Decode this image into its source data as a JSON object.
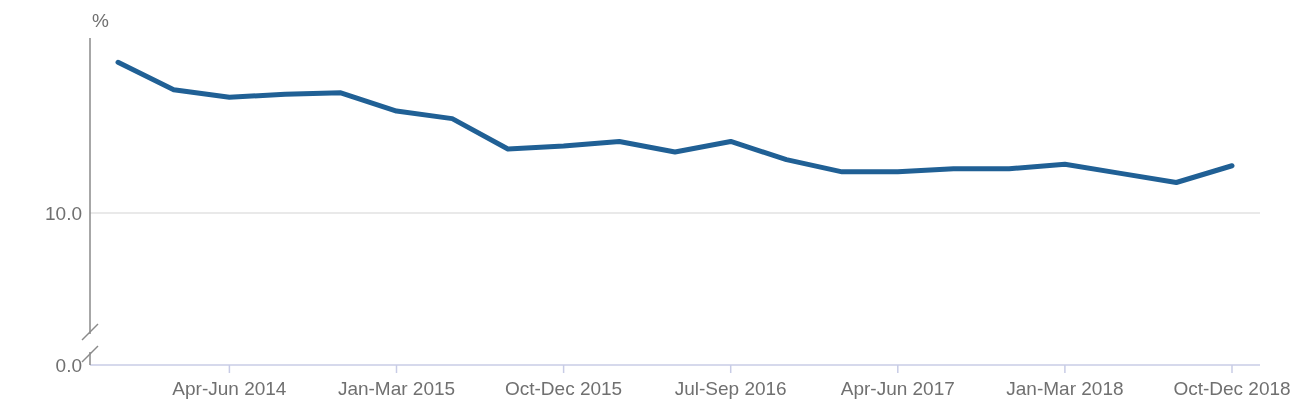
{
  "chart_data": {
    "type": "line",
    "ylabel": "%",
    "categories": [
      null,
      null,
      "Apr-Jun 2014",
      null,
      null,
      "Jan-Mar 2015",
      null,
      null,
      "Oct-Dec 2015",
      null,
      null,
      "Jul-Sep 2016",
      null,
      null,
      "Apr-Jun 2017",
      null,
      null,
      "Jan-Mar 2018",
      null,
      null,
      "Oct-Dec 2018"
    ],
    "series": [
      {
        "color": "#206095",
        "values": [
          19.9,
          18.1,
          17.6,
          17.8,
          17.9,
          16.7,
          16.2,
          14.2,
          14.4,
          14.7,
          14.0,
          14.7,
          13.5,
          12.7,
          12.7,
          12.9,
          12.9,
          13.2,
          12.6,
          12.0,
          13.1
        ]
      }
    ],
    "ylim": [
      0,
      21.5
    ],
    "yticks": [
      {
        "value": 0,
        "label": "0.0"
      },
      {
        "value": 10,
        "label": "10.0"
      }
    ],
    "grid": "y",
    "legend": false,
    "marker": "none",
    "line_style": "solid"
  }
}
